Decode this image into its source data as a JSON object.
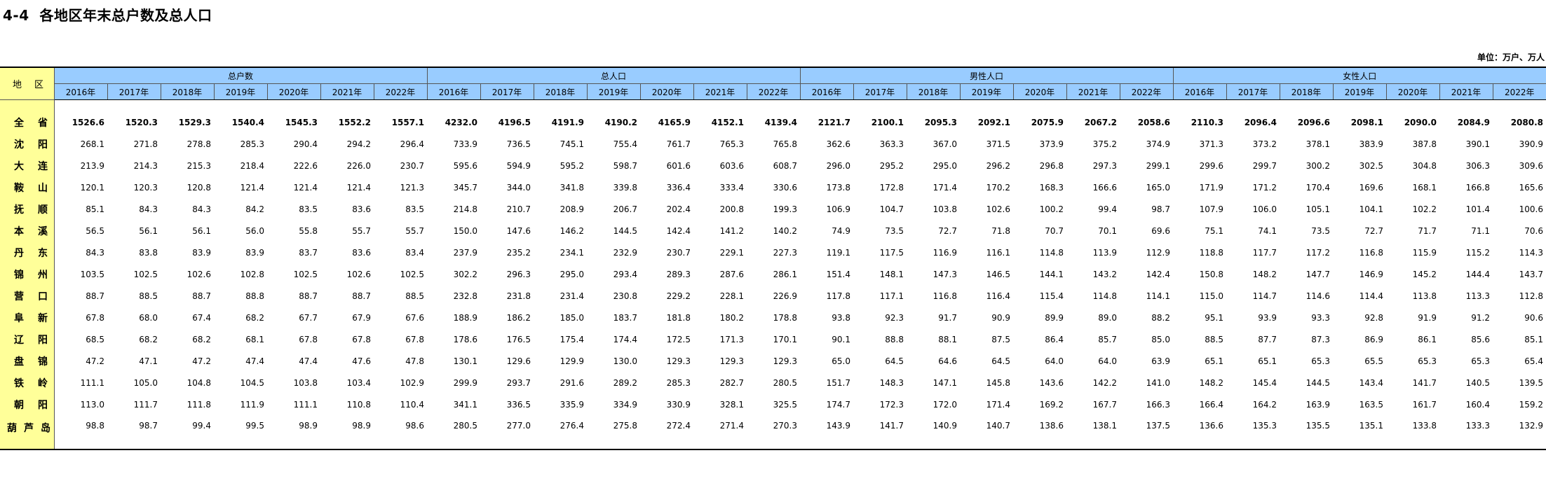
{
  "title": "4-4  各地区年末总户数及总人口",
  "unit": "单位：万户、万人",
  "region_header": "地区",
  "groups": [
    "总户数",
    "总人口",
    "男性人口",
    "女性人口"
  ],
  "years": [
    "2016年",
    "2017年",
    "2018年",
    "2019年",
    "2020年",
    "2021年",
    "2022年"
  ],
  "rows": [
    {
      "name": "全省",
      "values": [
        "1526.6",
        "1520.3",
        "1529.3",
        "1540.4",
        "1545.3",
        "1552.2",
        "1557.1",
        "4232.0",
        "4196.5",
        "4191.9",
        "4190.2",
        "4165.9",
        "4152.1",
        "4139.4",
        "2121.7",
        "2100.1",
        "2095.3",
        "2092.1",
        "2075.9",
        "2067.2",
        "2058.6",
        "2110.3",
        "2096.4",
        "2096.6",
        "2098.1",
        "2090.0",
        "2084.9",
        "2080.8"
      ]
    },
    {
      "name": "沈阳",
      "values": [
        "268.1",
        "271.8",
        "278.8",
        "285.3",
        "290.4",
        "294.2",
        "296.4",
        "733.9",
        "736.5",
        "745.1",
        "755.4",
        "761.7",
        "765.3",
        "765.8",
        "362.6",
        "363.3",
        "367.0",
        "371.5",
        "373.9",
        "375.2",
        "374.9",
        "371.3",
        "373.2",
        "378.1",
        "383.9",
        "387.8",
        "390.1",
        "390.9"
      ]
    },
    {
      "name": "大连",
      "values": [
        "213.9",
        "214.3",
        "215.3",
        "218.4",
        "222.6",
        "226.0",
        "230.7",
        "595.6",
        "594.9",
        "595.2",
        "598.7",
        "601.6",
        "603.6",
        "608.7",
        "296.0",
        "295.2",
        "295.0",
        "296.2",
        "296.8",
        "297.3",
        "299.1",
        "299.6",
        "299.7",
        "300.2",
        "302.5",
        "304.8",
        "306.3",
        "309.6"
      ]
    },
    {
      "name": "鞍山",
      "values": [
        "120.1",
        "120.3",
        "120.8",
        "121.4",
        "121.4",
        "121.4",
        "121.3",
        "345.7",
        "344.0",
        "341.8",
        "339.8",
        "336.4",
        "333.4",
        "330.6",
        "173.8",
        "172.8",
        "171.4",
        "170.2",
        "168.3",
        "166.6",
        "165.0",
        "171.9",
        "171.2",
        "170.4",
        "169.6",
        "168.1",
        "166.8",
        "165.6"
      ]
    },
    {
      "name": "抚顺",
      "values": [
        "85.1",
        "84.3",
        "84.3",
        "84.2",
        "83.5",
        "83.6",
        "83.5",
        "214.8",
        "210.7",
        "208.9",
        "206.7",
        "202.4",
        "200.8",
        "199.3",
        "106.9",
        "104.7",
        "103.8",
        "102.6",
        "100.2",
        "99.4",
        "98.7",
        "107.9",
        "106.0",
        "105.1",
        "104.1",
        "102.2",
        "101.4",
        "100.6"
      ]
    },
    {
      "name": "本溪",
      "values": [
        "56.5",
        "56.1",
        "56.1",
        "56.0",
        "55.8",
        "55.7",
        "55.7",
        "150.0",
        "147.6",
        "146.2",
        "144.5",
        "142.4",
        "141.2",
        "140.2",
        "74.9",
        "73.5",
        "72.7",
        "71.8",
        "70.7",
        "70.1",
        "69.6",
        "75.1",
        "74.1",
        "73.5",
        "72.7",
        "71.7",
        "71.1",
        "70.6"
      ]
    },
    {
      "name": "丹东",
      "values": [
        "84.3",
        "83.8",
        "83.9",
        "83.9",
        "83.7",
        "83.6",
        "83.4",
        "237.9",
        "235.2",
        "234.1",
        "232.9",
        "230.7",
        "229.1",
        "227.3",
        "119.1",
        "117.5",
        "116.9",
        "116.1",
        "114.8",
        "113.9",
        "112.9",
        "118.8",
        "117.7",
        "117.2",
        "116.8",
        "115.9",
        "115.2",
        "114.3"
      ]
    },
    {
      "name": "锦州",
      "values": [
        "103.5",
        "102.5",
        "102.6",
        "102.8",
        "102.5",
        "102.6",
        "102.5",
        "302.2",
        "296.3",
        "295.0",
        "293.4",
        "289.3",
        "287.6",
        "286.1",
        "151.4",
        "148.1",
        "147.3",
        "146.5",
        "144.1",
        "143.2",
        "142.4",
        "150.8",
        "148.2",
        "147.7",
        "146.9",
        "145.2",
        "144.4",
        "143.7"
      ]
    },
    {
      "name": "营口",
      "values": [
        "88.7",
        "88.5",
        "88.7",
        "88.8",
        "88.7",
        "88.7",
        "88.5",
        "232.8",
        "231.8",
        "231.4",
        "230.8",
        "229.2",
        "228.1",
        "226.9",
        "117.8",
        "117.1",
        "116.8",
        "116.4",
        "115.4",
        "114.8",
        "114.1",
        "115.0",
        "114.7",
        "114.6",
        "114.4",
        "113.8",
        "113.3",
        "112.8"
      ]
    },
    {
      "name": "阜新",
      "values": [
        "67.8",
        "68.0",
        "67.4",
        "68.2",
        "67.7",
        "67.9",
        "67.6",
        "188.9",
        "186.2",
        "185.0",
        "183.7",
        "181.8",
        "180.2",
        "178.8",
        "93.8",
        "92.3",
        "91.7",
        "90.9",
        "89.9",
        "89.0",
        "88.2",
        "95.1",
        "93.9",
        "93.3",
        "92.8",
        "91.9",
        "91.2",
        "90.6"
      ]
    },
    {
      "name": "辽阳",
      "values": [
        "68.5",
        "68.2",
        "68.2",
        "68.1",
        "67.8",
        "67.8",
        "67.8",
        "178.6",
        "176.5",
        "175.4",
        "174.4",
        "172.5",
        "171.3",
        "170.1",
        "90.1",
        "88.8",
        "88.1",
        "87.5",
        "86.4",
        "85.7",
        "85.0",
        "88.5",
        "87.7",
        "87.3",
        "86.9",
        "86.1",
        "85.6",
        "85.1"
      ]
    },
    {
      "name": "盘锦",
      "values": [
        "47.2",
        "47.1",
        "47.2",
        "47.4",
        "47.4",
        "47.6",
        "47.8",
        "130.1",
        "129.6",
        "129.9",
        "130.0",
        "129.3",
        "129.3",
        "129.3",
        "65.0",
        "64.5",
        "64.6",
        "64.5",
        "64.0",
        "64.0",
        "63.9",
        "65.1",
        "65.1",
        "65.3",
        "65.5",
        "65.3",
        "65.3",
        "65.4"
      ]
    },
    {
      "name": "铁岭",
      "values": [
        "111.1",
        "105.0",
        "104.8",
        "104.5",
        "103.8",
        "103.4",
        "102.9",
        "299.9",
        "293.7",
        "291.6",
        "289.2",
        "285.3",
        "282.7",
        "280.5",
        "151.7",
        "148.3",
        "147.1",
        "145.8",
        "143.6",
        "142.2",
        "141.0",
        "148.2",
        "145.4",
        "144.5",
        "143.4",
        "141.7",
        "140.5",
        "139.5"
      ]
    },
    {
      "name": "朝阳",
      "values": [
        "113.0",
        "111.7",
        "111.8",
        "111.9",
        "111.1",
        "110.8",
        "110.4",
        "341.1",
        "336.5",
        "335.9",
        "334.9",
        "330.9",
        "328.1",
        "325.5",
        "174.7",
        "172.3",
        "172.0",
        "171.4",
        "169.2",
        "167.7",
        "166.3",
        "166.4",
        "164.2",
        "163.9",
        "163.5",
        "161.7",
        "160.4",
        "159.2"
      ]
    },
    {
      "name": "葫芦岛",
      "values": [
        "98.8",
        "98.7",
        "99.4",
        "99.5",
        "98.9",
        "98.9",
        "98.6",
        "280.5",
        "277.0",
        "276.4",
        "275.8",
        "272.4",
        "271.4",
        "270.3",
        "143.9",
        "141.7",
        "140.9",
        "140.7",
        "138.6",
        "138.1",
        "137.5",
        "136.6",
        "135.3",
        "135.5",
        "135.1",
        "133.8",
        "133.3",
        "132.9"
      ]
    }
  ]
}
